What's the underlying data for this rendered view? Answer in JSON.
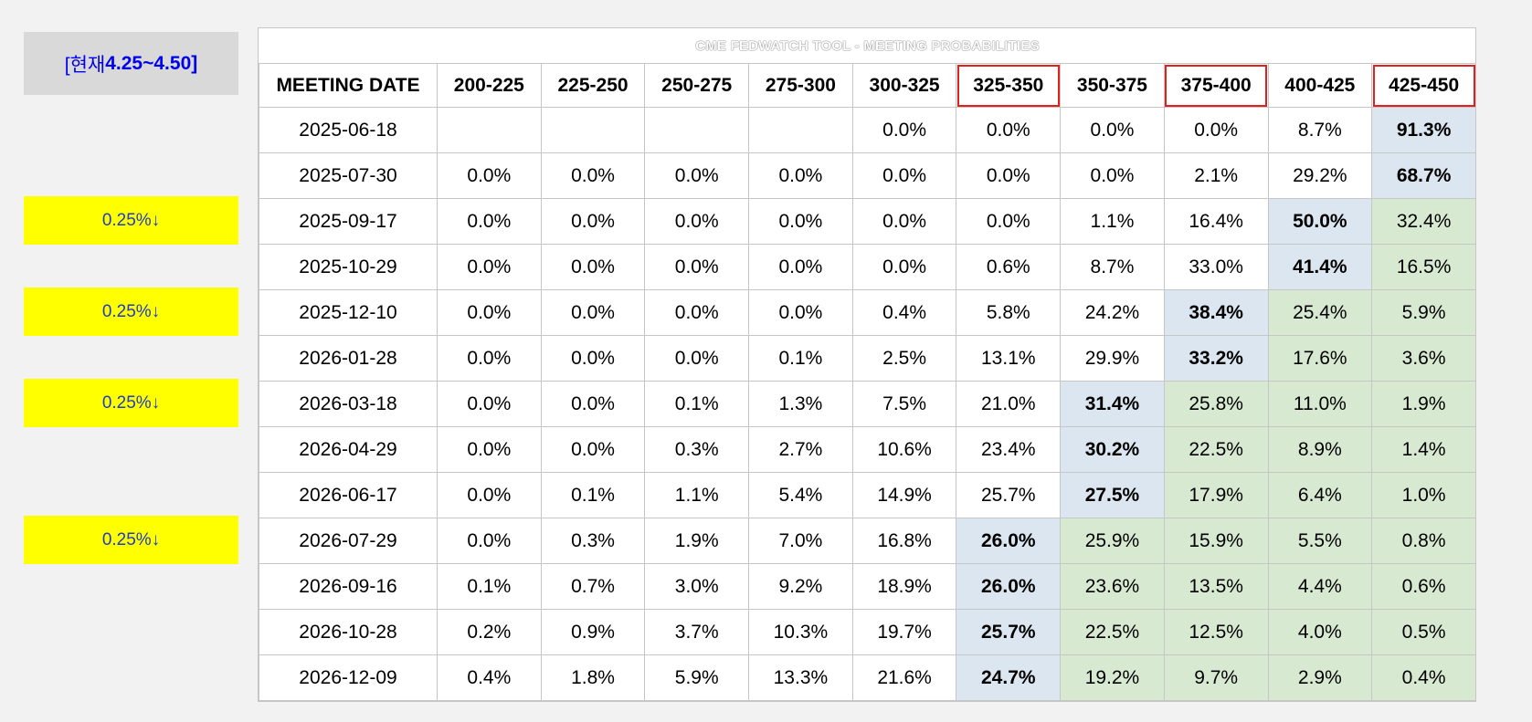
{
  "current_label_prefix": "[현재 ",
  "current_label_range": "4.25~4.50]",
  "cut_label": "0.25%↓",
  "title": "CME FEDWATCH TOOL - MEETING PROBABILITIES",
  "date_header": "MEETING DATE",
  "columns": [
    "200-225",
    "225-250",
    "250-275",
    "275-300",
    "300-325",
    "325-350",
    "350-375",
    "375-400",
    "400-425",
    "425-450"
  ],
  "highlighted_columns": [
    5,
    7,
    9
  ],
  "colors": {
    "target": "#dce6f1",
    "above": "#d8e9d2",
    "cut_badge": "#ffff00",
    "header_outline": "#e0201f"
  },
  "rows": [
    {
      "date": "2025-06-18",
      "values": [
        "",
        "",
        "",
        "",
        "0.0%",
        "0.0%",
        "0.0%",
        "0.0%",
        "8.7%",
        "91.3%"
      ],
      "target": 9,
      "cut": false
    },
    {
      "date": "2025-07-30",
      "values": [
        "0.0%",
        "0.0%",
        "0.0%",
        "0.0%",
        "0.0%",
        "0.0%",
        "0.0%",
        "2.1%",
        "29.2%",
        "68.7%"
      ],
      "target": 9,
      "cut": false
    },
    {
      "date": "2025-09-17",
      "values": [
        "0.0%",
        "0.0%",
        "0.0%",
        "0.0%",
        "0.0%",
        "0.0%",
        "1.1%",
        "16.4%",
        "50.0%",
        "32.4%"
      ],
      "target": 8,
      "cut": true
    },
    {
      "date": "2025-10-29",
      "values": [
        "0.0%",
        "0.0%",
        "0.0%",
        "0.0%",
        "0.0%",
        "0.6%",
        "8.7%",
        "33.0%",
        "41.4%",
        "16.5%"
      ],
      "target": 8,
      "cut": false
    },
    {
      "date": "2025-12-10",
      "values": [
        "0.0%",
        "0.0%",
        "0.0%",
        "0.0%",
        "0.4%",
        "5.8%",
        "24.2%",
        "38.4%",
        "25.4%",
        "5.9%"
      ],
      "target": 7,
      "cut": true
    },
    {
      "date": "2026-01-28",
      "values": [
        "0.0%",
        "0.0%",
        "0.0%",
        "0.1%",
        "2.5%",
        "13.1%",
        "29.9%",
        "33.2%",
        "17.6%",
        "3.6%"
      ],
      "target": 7,
      "cut": false
    },
    {
      "date": "2026-03-18",
      "values": [
        "0.0%",
        "0.0%",
        "0.1%",
        "1.3%",
        "7.5%",
        "21.0%",
        "31.4%",
        "25.8%",
        "11.0%",
        "1.9%"
      ],
      "target": 6,
      "cut": true
    },
    {
      "date": "2026-04-29",
      "values": [
        "0.0%",
        "0.0%",
        "0.3%",
        "2.7%",
        "10.6%",
        "23.4%",
        "30.2%",
        "22.5%",
        "8.9%",
        "1.4%"
      ],
      "target": 6,
      "cut": false
    },
    {
      "date": "2026-06-17",
      "values": [
        "0.0%",
        "0.1%",
        "1.1%",
        "5.4%",
        "14.9%",
        "25.7%",
        "27.5%",
        "17.9%",
        "6.4%",
        "1.0%"
      ],
      "target": 6,
      "cut": false
    },
    {
      "date": "2026-07-29",
      "values": [
        "0.0%",
        "0.3%",
        "1.9%",
        "7.0%",
        "16.8%",
        "26.0%",
        "25.9%",
        "15.9%",
        "5.5%",
        "0.8%"
      ],
      "target": 5,
      "cut": true
    },
    {
      "date": "2026-09-16",
      "values": [
        "0.1%",
        "0.7%",
        "3.0%",
        "9.2%",
        "18.9%",
        "26.0%",
        "23.6%",
        "13.5%",
        "4.4%",
        "0.6%"
      ],
      "target": 5,
      "cut": false
    },
    {
      "date": "2026-10-28",
      "values": [
        "0.2%",
        "0.9%",
        "3.7%",
        "10.3%",
        "19.7%",
        "25.7%",
        "22.5%",
        "12.5%",
        "4.0%",
        "0.5%"
      ],
      "target": 5,
      "cut": false
    },
    {
      "date": "2026-12-09",
      "values": [
        "0.4%",
        "1.8%",
        "5.9%",
        "13.3%",
        "21.6%",
        "24.7%",
        "19.2%",
        "9.7%",
        "2.9%",
        "0.4%"
      ],
      "target": 5,
      "cut": false
    }
  ]
}
